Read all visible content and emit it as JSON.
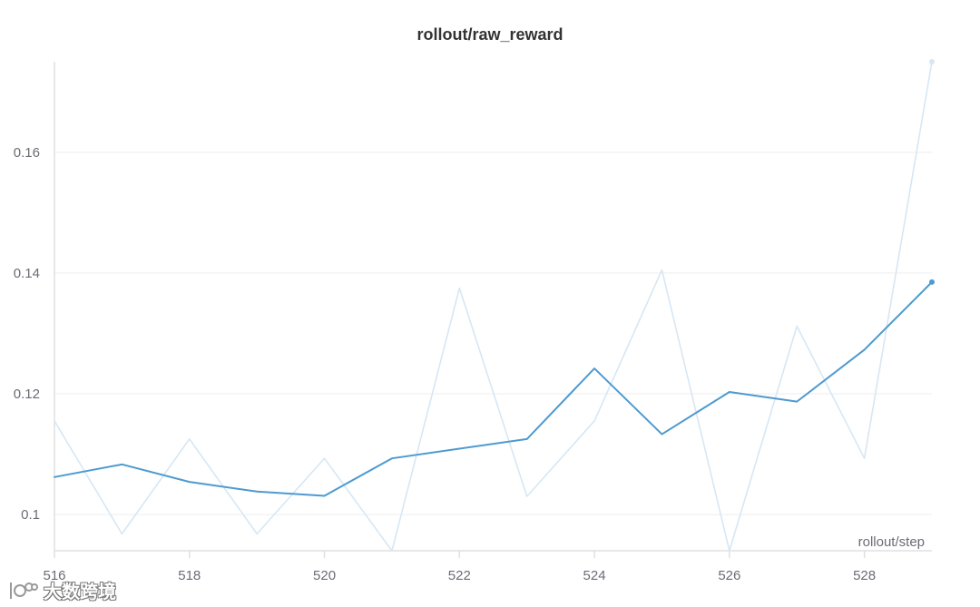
{
  "chart_data": {
    "type": "line",
    "title": "rollout/raw_reward",
    "xlabel": "rollout/step",
    "ylabel": "",
    "xlim": [
      516,
      529
    ],
    "ylim": [
      0.094,
      0.175
    ],
    "x_ticks": [
      516,
      518,
      520,
      522,
      524,
      526,
      528
    ],
    "y_ticks": [
      0.1,
      0.12,
      0.14,
      0.16
    ],
    "y_tick_labels": [
      "0.1",
      "0.12",
      "0.14",
      "0.16"
    ],
    "grid": true,
    "x": [
      516,
      517,
      518,
      519,
      520,
      521,
      522,
      523,
      524,
      525,
      526,
      527,
      528,
      529
    ],
    "series": [
      {
        "style": "raw",
        "color": "#d6e7f4",
        "values": [
          0.1155,
          0.0968,
          0.1125,
          0.0968,
          0.1093,
          0.094,
          0.1375,
          0.103,
          0.1155,
          0.1405,
          0.094,
          0.1312,
          0.1093,
          0.175
        ]
      },
      {
        "style": "smoothed",
        "color": "#4e9ad0",
        "values": [
          0.1062,
          0.1083,
          0.1054,
          0.1038,
          0.1031,
          0.1093,
          0.1109,
          0.1125,
          0.1242,
          0.1133,
          0.1203,
          0.1187,
          0.1273,
          0.1385
        ]
      }
    ]
  },
  "watermark": {
    "text": "大数跨境"
  }
}
